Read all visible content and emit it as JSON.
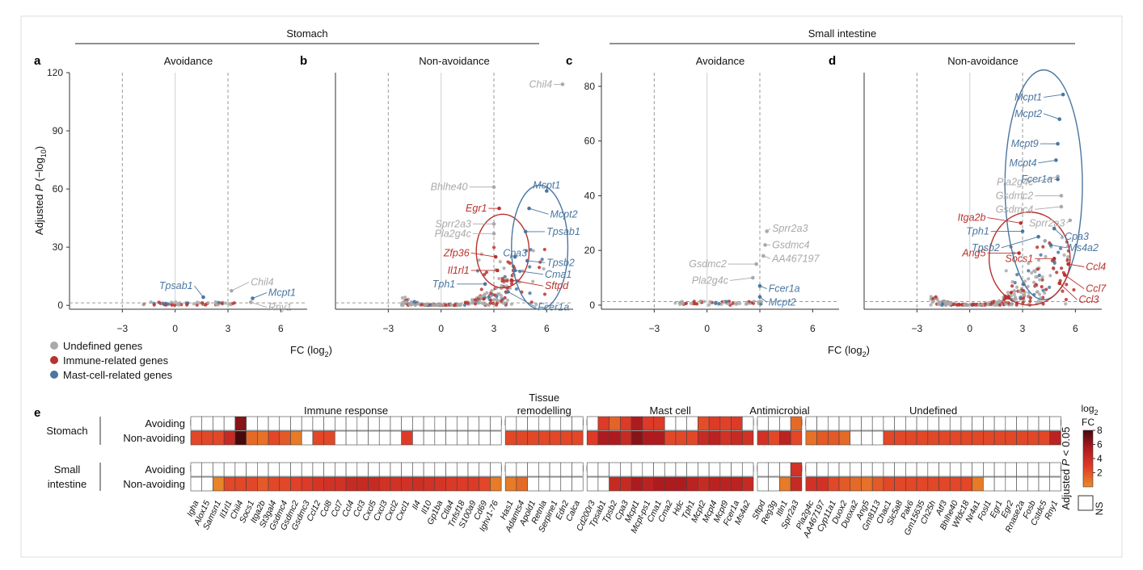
{
  "group_headers": {
    "stomach": "Stomach",
    "small_intestine": "Small intestine"
  },
  "shared": {
    "ylabel_parts": [
      "Adjusted ",
      "P",
      " (−log",
      "10",
      ")"
    ],
    "xlabel_parts": [
      "FC (log",
      "2",
      ")"
    ],
    "x_ticks": [
      -3,
      0,
      3,
      6
    ]
  },
  "legend": [
    {
      "label": "Undefined genes",
      "color": "#a9a9a9"
    },
    {
      "label": "Immune-related genes",
      "color": "#b8322e"
    },
    {
      "label": "Mast-cell-related genes",
      "color": "#4a76a0"
    }
  ],
  "colors": {
    "undefined": "#a9a9a9",
    "immune": "#b8322e",
    "mast": "#4a76a0"
  },
  "chart_data": [
    {
      "type": "scatter",
      "panel": "a",
      "title": "Avoidance",
      "xlim": [
        -6,
        7.5
      ],
      "ylim": [
        -2,
        120
      ],
      "y_ticks": [
        0,
        30,
        60,
        90,
        120
      ],
      "vlines": [
        -3,
        0,
        3
      ],
      "hline": 1.3,
      "labels": [
        {
          "text": "Tpsab1",
          "x": 1.6,
          "y": 4.2,
          "tx": 1.1,
          "ty": 10,
          "cat": "mast"
        },
        {
          "text": "Chil4",
          "x": 3.2,
          "y": 7.5,
          "tx": 4.2,
          "ty": 12,
          "cat": "undefined"
        },
        {
          "text": "Mcpt1",
          "x": 4.4,
          "y": 3.6,
          "tx": 5.2,
          "ty": 6.5,
          "cat": "mast"
        },
        {
          "text": "Rny1",
          "x": 4.3,
          "y": 1.6,
          "tx": 5.2,
          "ty": -1,
          "cat": "undefined"
        }
      ]
    },
    {
      "type": "scatter",
      "panel": "b",
      "title": "Non-avoidance",
      "xlim": [
        -6,
        7.5
      ],
      "ylim": [
        -2,
        120
      ],
      "y_ticks": [],
      "vlines": [
        -3,
        0,
        3
      ],
      "hline": 1.3,
      "ellipses": [
        {
          "cx": 3.5,
          "cy": 28,
          "rx": 1.5,
          "ry": 19,
          "cat": "immune"
        },
        {
          "cx": 5.6,
          "cy": 30,
          "rx": 1.6,
          "ry": 32,
          "cat": "mast"
        }
      ],
      "labels": [
        {
          "text": "Chil4",
          "x": 6.9,
          "y": 114,
          "tx": 6.4,
          "ty": 114,
          "cat": "undefined"
        },
        {
          "text": "Bhlhe40",
          "x": 3.0,
          "y": 61,
          "tx": 1.6,
          "ty": 61,
          "cat": "undefined"
        },
        {
          "text": "Egr1",
          "x": 3.3,
          "y": 50,
          "tx": 2.7,
          "ty": 50,
          "cat": "immune"
        },
        {
          "text": "Mcpt1",
          "x": 6.0,
          "y": 59,
          "tx": 6.0,
          "ty": 62,
          "cat": "mast"
        },
        {
          "text": "Mcpt2",
          "x": 5.0,
          "y": 50,
          "tx": 6.1,
          "ty": 47,
          "cat": "mast"
        },
        {
          "text": "Sprr2a3",
          "x": 3.0,
          "y": 42,
          "tx": 1.8,
          "ty": 42,
          "cat": "undefined"
        },
        {
          "text": "Tpsab1",
          "x": 4.8,
          "y": 38,
          "tx": 5.9,
          "ty": 38,
          "cat": "mast"
        },
        {
          "text": "Pla2g4c",
          "x": 3.0,
          "y": 37,
          "tx": 1.8,
          "ty": 37,
          "cat": "undefined"
        },
        {
          "text": "Cpa3",
          "x": 4.2,
          "y": 25,
          "tx": 4.2,
          "ty": 27,
          "cat": "mast"
        },
        {
          "text": "Zfp36",
          "x": 3.1,
          "y": 25,
          "tx": 1.7,
          "ty": 27,
          "cat": "immune"
        },
        {
          "text": "Tpsb2",
          "x": 4.9,
          "y": 23,
          "tx": 5.9,
          "ty": 22,
          "cat": "mast"
        },
        {
          "text": "Il1rl1",
          "x": 3.2,
          "y": 18,
          "tx": 1.7,
          "ty": 18,
          "cat": "immune"
        },
        {
          "text": "Cma1",
          "x": 4.2,
          "y": 18,
          "tx": 5.8,
          "ty": 16,
          "cat": "mast"
        },
        {
          "text": "Sftpd",
          "x": 4.0,
          "y": 13,
          "tx": 5.8,
          "ty": 10,
          "cat": "immune"
        },
        {
          "text": "Tph1",
          "x": 2.5,
          "y": 11,
          "tx": 0.9,
          "ty": 11,
          "cat": "mast"
        },
        {
          "text": "Fcer1a",
          "x": 3.8,
          "y": 7,
          "tx": 5.4,
          "ty": -1,
          "cat": "mast"
        }
      ]
    },
    {
      "type": "scatter",
      "panel": "c",
      "title": "Avoidance",
      "xlim": [
        -6,
        7.5
      ],
      "ylim": [
        -1.5,
        85
      ],
      "y_ticks": [
        0,
        20,
        40,
        60,
        80
      ],
      "vlines": [
        -3,
        0,
        3
      ],
      "hline": 1.3,
      "labels": [
        {
          "text": "Sprr2a3",
          "x": 3.4,
          "y": 27,
          "tx": 3.6,
          "ty": 28,
          "cat": "undefined"
        },
        {
          "text": "Gsdmc4",
          "x": 3.3,
          "y": 22,
          "tx": 3.6,
          "ty": 22,
          "cat": "undefined"
        },
        {
          "text": "AA467197",
          "x": 3.2,
          "y": 18,
          "tx": 3.6,
          "ty": 17,
          "cat": "undefined"
        },
        {
          "text": "Gsdmc2",
          "x": 2.8,
          "y": 15,
          "tx": 1.2,
          "ty": 15,
          "cat": "undefined"
        },
        {
          "text": "Pla2g4c",
          "x": 2.6,
          "y": 10,
          "tx": 1.3,
          "ty": 9,
          "cat": "undefined"
        },
        {
          "text": "Fcer1a",
          "x": 3.0,
          "y": 7,
          "tx": 3.4,
          "ty": 6,
          "cat": "mast"
        },
        {
          "text": "Mcpt2",
          "x": 3.0,
          "y": 3,
          "tx": 3.4,
          "ty": 1,
          "cat": "mast"
        }
      ]
    },
    {
      "type": "scatter",
      "panel": "d",
      "title": "Non-avoidance",
      "xlim": [
        -6,
        7.5
      ],
      "ylim": [
        -1.5,
        85
      ],
      "y_ticks": [],
      "vlines": [
        -3,
        0,
        3
      ],
      "hline": 1.3,
      "ellipses": [
        {
          "cx": 4.2,
          "cy": 44,
          "rx": 2.2,
          "ry": 42,
          "cat": "mast"
        },
        {
          "cx": 3.4,
          "cy": 17,
          "rx": 2.3,
          "ry": 17,
          "cat": "immune"
        }
      ],
      "labels": [
        {
          "text": "Mcpt1",
          "x": 5.3,
          "y": 77,
          "tx": 4.2,
          "ty": 76,
          "cat": "mast"
        },
        {
          "text": "Mcpt2",
          "x": 5.1,
          "y": 68,
          "tx": 4.2,
          "ty": 70,
          "cat": "mast"
        },
        {
          "text": "Mcpt9",
          "x": 5.0,
          "y": 59,
          "tx": 4.0,
          "ty": 59,
          "cat": "mast"
        },
        {
          "text": "Mcpt4",
          "x": 4.9,
          "y": 53,
          "tx": 3.9,
          "ty": 52,
          "cat": "mast"
        },
        {
          "text": "Pla2g4c",
          "x": 5.0,
          "y": 47,
          "tx": 3.7,
          "ty": 45,
          "cat": "undefined"
        },
        {
          "text": "Fcer1a",
          "x": 5.0,
          "y": 46,
          "tx": 4.8,
          "ty": 46,
          "cat": "mast"
        },
        {
          "text": "Gsdmc2",
          "x": 5.2,
          "y": 40,
          "tx": 3.7,
          "ty": 40,
          "cat": "undefined"
        },
        {
          "text": "Gsdmc4",
          "x": 5.2,
          "y": 36,
          "tx": 3.7,
          "ty": 35,
          "cat": "undefined"
        },
        {
          "text": "Sprr2a3",
          "x": 5.7,
          "y": 31,
          "tx": 5.5,
          "ty": 30,
          "cat": "undefined"
        },
        {
          "text": "Itga2b",
          "x": 2.9,
          "y": 30,
          "tx": 1.0,
          "ty": 32,
          "cat": "immune"
        },
        {
          "text": "Tph1",
          "x": 3.0,
          "y": 27,
          "tx": 1.2,
          "ty": 27,
          "cat": "mast"
        },
        {
          "text": "Cpa3",
          "x": 4.8,
          "y": 28,
          "tx": 5.3,
          "ty": 25,
          "cat": "mast"
        },
        {
          "text": "Tpsb2",
          "x": 3.9,
          "y": 25,
          "tx": 1.8,
          "ty": 21,
          "cat": "mast"
        },
        {
          "text": "Ms4a2",
          "x": 4.6,
          "y": 22,
          "tx": 5.5,
          "ty": 21,
          "cat": "mast"
        },
        {
          "text": "Ang5",
          "x": 2.8,
          "y": 19,
          "tx": 1.0,
          "ty": 19,
          "cat": "immune"
        },
        {
          "text": "Socs1",
          "x": 4.8,
          "y": 17,
          "tx": 3.7,
          "ty": 17,
          "cat": "immune"
        },
        {
          "text": "Ccl4",
          "x": 5.6,
          "y": 15,
          "tx": 6.5,
          "ty": 14,
          "cat": "immune"
        },
        {
          "text": "Ccl7",
          "x": 5.4,
          "y": 11,
          "tx": 6.5,
          "ty": 6,
          "cat": "immune"
        },
        {
          "text": "Ccl3",
          "x": 5.1,
          "y": 8,
          "tx": 6.1,
          "ty": 2,
          "cat": "immune"
        }
      ]
    },
    {
      "type": "heatmap",
      "panel": "e",
      "row_groups": [
        {
          "name": "Stomach",
          "rows": [
            "Avoiding",
            "Non-avoiding"
          ]
        },
        {
          "name": "Small\nintestine",
          "rows": [
            "Avoiding",
            "Non-avoiding"
          ]
        }
      ],
      "col_groups": [
        {
          "name": "Immune response",
          "genes": [
            "Igha",
            "Alox15",
            "Samsn1",
            "Il1rl1",
            "Chil4",
            "Socs1",
            "Itga2b",
            "St3gal4",
            "Gsdmc4",
            "Gsdmc2",
            "Gsdmc3",
            "Ccl12",
            "Ccl8",
            "Ccl7",
            "Ccl4",
            "Ccl3",
            "Cxcl5",
            "Cxcl3",
            "Cxcl2",
            "Cxcl1",
            "Il4",
            "Il10",
            "Gp1ba",
            "Ctla4",
            "Tnfsf18",
            "S100a9",
            "Cd69",
            "Ighv1-76"
          ]
        },
        {
          "name": "Tissue\nremodelling",
          "genes": [
            "Has1",
            "Adamts4",
            "Apold1",
            "Retnla",
            "Serpine1",
            "Edn2",
            "Calca"
          ]
        },
        {
          "name": "Mast cell",
          "genes": [
            "Cd200r3",
            "Tpsab1",
            "Tpsb2",
            "Cpa3",
            "Mcpt1",
            "Mcpt-ps1",
            "Cma1",
            "Cma2",
            "Hdc",
            "Tph1",
            "Mcpt2",
            "Mcpt4",
            "Mcpt9",
            "Fcer1a",
            "Ms4a2"
          ]
        },
        {
          "name": "Antimicrobial",
          "genes": [
            "Sftpd",
            "Reg3g",
            "Itln1",
            "Sprr2a3"
          ]
        },
        {
          "name": "Undefined",
          "genes": [
            "Pla2g4c",
            "AA467197",
            "Cyp11a1",
            "Duox2",
            "Duoxa2",
            "Ang5",
            "Gm8113",
            "Chac1",
            "Slc5a8",
            "Pak6",
            "Gm15635",
            "Ch25h",
            "Atf3",
            "Bhlhe40",
            "Wfdc18",
            "Nr4a1",
            "Fosl1",
            "Egr1",
            "Egr2",
            "Rnase2a",
            "Fosb",
            "Cstdc5",
            "Rny1"
          ]
        }
      ],
      "values": [
        [
          0,
          0,
          0,
          0,
          6.5,
          0,
          0,
          0,
          0,
          0,
          0,
          0,
          0,
          0,
          0,
          0,
          0,
          0,
          0,
          0,
          0,
          0,
          0,
          0,
          0,
          0,
          0,
          0,
          0,
          0,
          0,
          0,
          0,
          0,
          0,
          0,
          3.5,
          2.2,
          3.5,
          5.5,
          3.5,
          3.5,
          0,
          0,
          0,
          2.8,
          3.5,
          3.2,
          3.5,
          0,
          0,
          0,
          0,
          2,
          0,
          0,
          0,
          0,
          0,
          0,
          0,
          0,
          0,
          0,
          0,
          0,
          0,
          0,
          0,
          0,
          0,
          0,
          0,
          0,
          0,
          0,
          0
        ],
        [
          3,
          3,
          3,
          4.5,
          8,
          2,
          1.8,
          3,
          2.5,
          1.5,
          0,
          3,
          3,
          0,
          0,
          0,
          0,
          0,
          0,
          3.5,
          0,
          0,
          0,
          0,
          0,
          0,
          0,
          0,
          3,
          3,
          3,
          3,
          3,
          3,
          3,
          3.5,
          5.5,
          5.5,
          4.5,
          6.5,
          5.5,
          5.5,
          3,
          3,
          3,
          4.5,
          5,
          4,
          4.5,
          4,
          4,
          3,
          5,
          3,
          1.8,
          2.5,
          2.5,
          2,
          0,
          0,
          0,
          3,
          3,
          3,
          3,
          3,
          3,
          3,
          3,
          3,
          3,
          3,
          3,
          3,
          3,
          3,
          5
        ],
        [
          0,
          0,
          0,
          0,
          0,
          0,
          0,
          0,
          0,
          0,
          0,
          0,
          0,
          0,
          0,
          0,
          0,
          0,
          0,
          0,
          0,
          0,
          0,
          0,
          0,
          0,
          0,
          0,
          0,
          0,
          0,
          0,
          0,
          0,
          0,
          0,
          0,
          0,
          0,
          0,
          0,
          0,
          0,
          0,
          0,
          0,
          0,
          0,
          0,
          0,
          0,
          0,
          0,
          4,
          0,
          0,
          0,
          0,
          0,
          0,
          0,
          0,
          0,
          0,
          0,
          0,
          0,
          0,
          0,
          0,
          0,
          0,
          0,
          0,
          0,
          0,
          0
        ],
        [
          0,
          0,
          1.2,
          3,
          3,
          3,
          2.5,
          3,
          3,
          3.2,
          3.5,
          3.8,
          4,
          4,
          4.5,
          4.5,
          4.5,
          4,
          4,
          4,
          4.2,
          4,
          3.8,
          3.6,
          3.5,
          3.5,
          3,
          1.5,
          1.5,
          2,
          0,
          0,
          0,
          0,
          0,
          0,
          0,
          4.5,
          4.5,
          5.5,
          5,
          5.5,
          5.5,
          5.5,
          5,
          4.5,
          5,
          5,
          5,
          4.5,
          0,
          0,
          1.5,
          4.5,
          4,
          4,
          3,
          2.5,
          2,
          1.8,
          2.5,
          3,
          3,
          3,
          3,
          3,
          3,
          3,
          3,
          1.5,
          0,
          0,
          0,
          0,
          0,
          0,
          0
        ]
      ],
      "scale": {
        "title_parts": [
          "log",
          "2",
          "FC"
        ],
        "side_parts": [
          "Adjusted ",
          "P",
          " < 0.05"
        ],
        "ticks": [
          2,
          4,
          6,
          8
        ],
        "range": [
          0,
          8
        ],
        "ns_label": "NS"
      }
    }
  ]
}
